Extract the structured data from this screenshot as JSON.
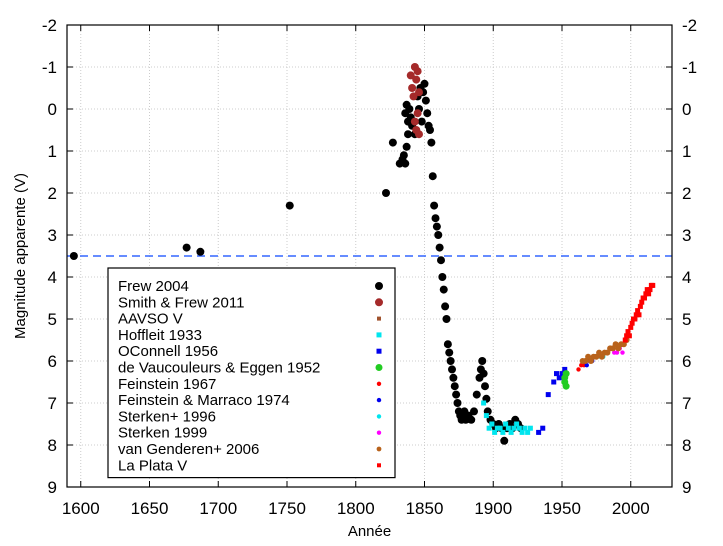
{
  "chart_data": {
    "type": "scatter",
    "xlabel": "Année",
    "ylabel": "Magnitude apparente (V)",
    "xlim": [
      1590,
      2030
    ],
    "ylim": [
      -2,
      9
    ],
    "y_inverted": true,
    "x_ticks": [
      1600,
      1650,
      1700,
      1750,
      1800,
      1850,
      1900,
      1950,
      2000
    ],
    "y_ticks": [
      -2,
      -1,
      0,
      1,
      2,
      3,
      4,
      5,
      6,
      7,
      8,
      9
    ],
    "y_tick_labels": [
      "-2",
      "-1",
      "0",
      "1",
      "2",
      "3",
      "4",
      "5",
      "6",
      "7",
      "8",
      "9"
    ],
    "grid": true,
    "mirror_right_axis": true,
    "legend_position": "lower-left",
    "reference_line": {
      "y": 3.5,
      "style": "dashed",
      "color": "#3366ff"
    },
    "series": [
      {
        "name": "Frew 2004",
        "marker": "circle",
        "color": "#000000",
        "points": [
          [
            1595,
            3.5
          ],
          [
            1677,
            3.3
          ],
          [
            1687,
            3.4
          ],
          [
            1752,
            2.3
          ],
          [
            1822,
            2.0
          ],
          [
            1827,
            0.8
          ],
          [
            1832,
            1.3
          ],
          [
            1834,
            1.2
          ],
          [
            1835,
            1.1
          ],
          [
            1836,
            1.3
          ],
          [
            1837,
            0.9
          ],
          [
            1838,
            0.6
          ],
          [
            1836,
            0.1
          ],
          [
            1837,
            -0.1
          ],
          [
            1838,
            0.3
          ],
          [
            1839,
            0.0
          ],
          [
            1840,
            0.2
          ],
          [
            1841,
            0.4
          ],
          [
            1843,
            0.6
          ],
          [
            1845,
            -0.3
          ],
          [
            1846,
            0.0
          ],
          [
            1847,
            -0.5
          ],
          [
            1848,
            0.3
          ],
          [
            1849,
            -0.4
          ],
          [
            1850,
            -0.6
          ],
          [
            1851,
            -0.2
          ],
          [
            1852,
            0.1
          ],
          [
            1853,
            0.4
          ],
          [
            1854,
            0.5
          ],
          [
            1855,
            0.8
          ],
          [
            1856,
            1.6
          ],
          [
            1857,
            2.3
          ],
          [
            1858,
            2.6
          ],
          [
            1859,
            2.8
          ],
          [
            1860,
            3.0
          ],
          [
            1861,
            3.3
          ],
          [
            1862,
            3.6
          ],
          [
            1863,
            4.0
          ],
          [
            1864,
            4.3
          ],
          [
            1865,
            4.7
          ],
          [
            1866,
            5.0
          ],
          [
            1867,
            5.6
          ],
          [
            1868,
            5.8
          ],
          [
            1869,
            6.0
          ],
          [
            1870,
            6.2
          ],
          [
            1871,
            6.4
          ],
          [
            1872,
            6.6
          ],
          [
            1873,
            6.8
          ],
          [
            1874,
            7.0
          ],
          [
            1875,
            7.2
          ],
          [
            1876,
            7.3
          ],
          [
            1877,
            7.4
          ],
          [
            1878,
            7.3
          ],
          [
            1879,
            7.2
          ],
          [
            1880,
            7.4
          ],
          [
            1882,
            7.3
          ],
          [
            1884,
            7.4
          ],
          [
            1886,
            7.2
          ],
          [
            1888,
            6.8
          ],
          [
            1890,
            6.4
          ],
          [
            1891,
            6.2
          ],
          [
            1892,
            6.0
          ],
          [
            1893,
            6.3
          ],
          [
            1894,
            6.6
          ],
          [
            1895,
            6.9
          ],
          [
            1896,
            7.2
          ],
          [
            1898,
            7.4
          ],
          [
            1900,
            7.5
          ],
          [
            1902,
            7.6
          ],
          [
            1904,
            7.5
          ],
          [
            1906,
            7.6
          ],
          [
            1908,
            7.9
          ],
          [
            1910,
            7.6
          ],
          [
            1912,
            7.5
          ],
          [
            1914,
            7.6
          ],
          [
            1916,
            7.4
          ],
          [
            1918,
            7.5
          ],
          [
            1920,
            7.6
          ]
        ]
      },
      {
        "name": "Smith & Frew 2011",
        "marker": "circle",
        "color": "#a52a2a",
        "points": [
          [
            1840,
            -0.8
          ],
          [
            1841,
            -0.5
          ],
          [
            1842,
            -0.3
          ],
          [
            1843,
            -1.0
          ],
          [
            1843,
            0.3
          ],
          [
            1844,
            -0.7
          ],
          [
            1844,
            0.5
          ],
          [
            1845,
            -0.9
          ],
          [
            1845,
            0.1
          ],
          [
            1846,
            -0.4
          ],
          [
            1846,
            0.6
          ]
        ]
      },
      {
        "name": "AAVSO V",
        "marker": "square",
        "color": "#a0522d",
        "points": []
      },
      {
        "name": "Hoffleit 1933",
        "marker": "square",
        "color": "#00e5ee",
        "points": [
          [
            1893,
            7.0
          ],
          [
            1895,
            7.3
          ],
          [
            1897,
            7.6
          ],
          [
            1899,
            7.5
          ],
          [
            1901,
            7.7
          ],
          [
            1903,
            7.6
          ],
          [
            1905,
            7.6
          ],
          [
            1907,
            7.7
          ],
          [
            1909,
            7.5
          ],
          [
            1911,
            7.6
          ],
          [
            1913,
            7.7
          ],
          [
            1915,
            7.6
          ],
          [
            1917,
            7.5
          ],
          [
            1919,
            7.6
          ],
          [
            1921,
            7.7
          ],
          [
            1923,
            7.6
          ],
          [
            1925,
            7.7
          ],
          [
            1927,
            7.6
          ]
        ]
      },
      {
        "name": "OConnell 1956",
        "marker": "square",
        "color": "#0000ee",
        "points": [
          [
            1933,
            7.7
          ],
          [
            1936,
            7.6
          ],
          [
            1940,
            6.8
          ],
          [
            1944,
            6.5
          ],
          [
            1946,
            6.3
          ],
          [
            1948,
            6.4
          ],
          [
            1950,
            6.3
          ],
          [
            1952,
            6.2
          ]
        ]
      },
      {
        "name": "de Vaucouleurs & Eggen 1952",
        "marker": "circle",
        "color": "#22cc22",
        "points": [
          [
            1952,
            6.4
          ],
          [
            1952,
            6.5
          ],
          [
            1953,
            6.3
          ],
          [
            1953,
            6.6
          ]
        ]
      },
      {
        "name": "Feinstein 1967",
        "marker": "circle",
        "color": "#ff0000",
        "points": [
          [
            1962,
            6.2
          ],
          [
            1964,
            6.1
          ],
          [
            1966,
            6.1
          ]
        ]
      },
      {
        "name": "Feinstein & Marraco 1974",
        "marker": "circle",
        "color": "#0000ee",
        "points": [
          [
            1968,
            6.1
          ],
          [
            1970,
            6.0
          ],
          [
            1972,
            6.0
          ],
          [
            1974,
            5.9
          ]
        ]
      },
      {
        "name": "Sterken+ 1996",
        "marker": "circle",
        "color": "#00e5ee",
        "points": [
          [
            1978,
            5.9
          ],
          [
            1980,
            5.9
          ],
          [
            1982,
            5.8
          ]
        ]
      },
      {
        "name": "Sterken 1999",
        "marker": "circle",
        "color": "#ff00ff",
        "points": [
          [
            1988,
            5.8
          ],
          [
            1990,
            5.8
          ],
          [
            1992,
            5.7
          ],
          [
            1994,
            5.8
          ]
        ]
      },
      {
        "name": "van Genderen+ 2006",
        "marker": "circle",
        "color": "#b8621b",
        "points": [
          [
            1965,
            6.0
          ],
          [
            1967,
            6.0
          ],
          [
            1969,
            5.9
          ],
          [
            1971,
            6.0
          ],
          [
            1973,
            5.9
          ],
          [
            1975,
            5.9
          ],
          [
            1977,
            5.8
          ],
          [
            1979,
            5.9
          ],
          [
            1981,
            5.8
          ],
          [
            1983,
            5.8
          ],
          [
            1985,
            5.7
          ],
          [
            1987,
            5.7
          ],
          [
            1989,
            5.6
          ],
          [
            1991,
            5.7
          ],
          [
            1993,
            5.6
          ],
          [
            1995,
            5.6
          ],
          [
            1997,
            5.5
          ]
        ]
      },
      {
        "name": "La Plata V",
        "marker": "square",
        "color": "#ff0000",
        "points": [
          [
            1996,
            5.5
          ],
          [
            1997,
            5.4
          ],
          [
            1998,
            5.3
          ],
          [
            1999,
            5.4
          ],
          [
            2000,
            5.2
          ],
          [
            2001,
            5.1
          ],
          [
            2002,
            5.0
          ],
          [
            2003,
            5.0
          ],
          [
            2004,
            4.9
          ],
          [
            2005,
            4.8
          ],
          [
            2006,
            4.9
          ],
          [
            2007,
            4.7
          ],
          [
            2008,
            4.6
          ],
          [
            2009,
            4.5
          ],
          [
            2010,
            4.5
          ],
          [
            2011,
            4.4
          ],
          [
            2012,
            4.3
          ],
          [
            2013,
            4.4
          ],
          [
            2014,
            4.3
          ],
          [
            2015,
            4.2
          ],
          [
            2016,
            4.2
          ]
        ]
      }
    ]
  }
}
